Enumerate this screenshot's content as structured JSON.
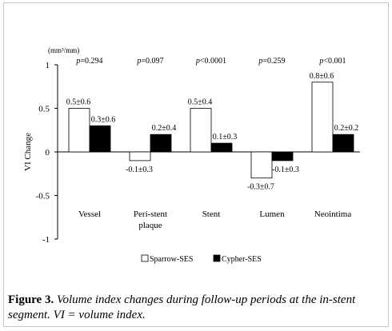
{
  "chart_data": {
    "type": "bar",
    "unit_label": "(mm³/mm)",
    "ylabel": "VI Change",
    "xlabel": "",
    "ylim": [
      -1,
      1
    ],
    "yticks": [
      1,
      0.5,
      0,
      -0.5,
      -1
    ],
    "ytick_labels": [
      "1",
      "0.5",
      "0",
      "-0.5",
      "-1"
    ],
    "grid": false,
    "legend_position": "bottom-center",
    "categories": [
      "Vessel",
      "Peri-stent plaque",
      "Stent",
      "Lumen",
      "Neointima"
    ],
    "category_labels": [
      [
        "Vessel"
      ],
      [
        "Peri-stent",
        "plaque"
      ],
      [
        "Stent"
      ],
      [
        "Lumen"
      ],
      [
        "Neointima"
      ]
    ],
    "p_values": [
      "p=0.294",
      "p=0.097",
      "p<0.0001",
      "p=0.259",
      "p<0.001"
    ],
    "series": [
      {
        "name": "Sparrow-SES",
        "fill": "#ffffff",
        "values": [
          0.5,
          -0.1,
          0.5,
          -0.3,
          0.8
        ],
        "labels": [
          "0.5±0.6",
          "-0.1±0.3",
          "0.5±0.4",
          "-0.3±0.7",
          "0.8±0.6"
        ]
      },
      {
        "name": "Cypher-SES",
        "fill": "#000000",
        "values": [
          0.3,
          0.2,
          0.1,
          -0.1,
          0.2
        ],
        "labels": [
          "0.3±0.6",
          "0.2±0.4",
          "0.1±0.3",
          "-0.1±0.3",
          "0.2±0.2"
        ]
      }
    ]
  },
  "caption": {
    "label": "Figure 3.",
    "text": "Volume index changes during follow-up periods at the in-stent segment. VI = volume index."
  }
}
